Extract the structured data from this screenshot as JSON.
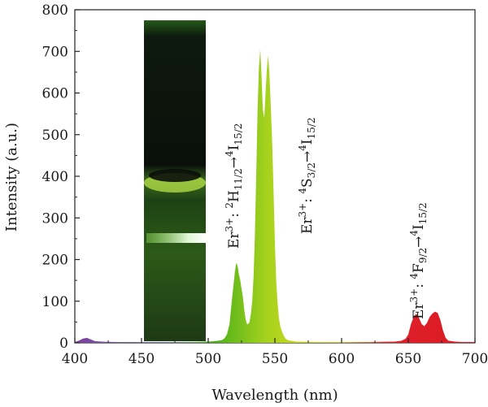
{
  "chart_data": {
    "type": "area",
    "xlabel": "Wavelength (nm)",
    "ylabel": "Intensity (a.u.)",
    "xlim": [
      400,
      700
    ],
    "ylim": [
      0,
      800
    ],
    "xticks": [
      400,
      450,
      500,
      550,
      600,
      650,
      700
    ],
    "yticks": [
      0,
      100,
      200,
      300,
      400,
      500,
      600,
      700,
      800
    ],
    "grid": false,
    "colors": {
      "violet": "#7b3f9e",
      "green": "#4caf1a",
      "yellow_green": "#b8d320",
      "red": "#e0202a"
    },
    "series": [
      {
        "x": [
          400,
          403,
          406,
          409,
          412,
          415,
          420,
          430,
          440,
          450,
          460,
          470,
          480,
          490,
          500,
          505,
          510,
          512,
          514,
          516,
          518,
          520,
          521,
          522,
          523,
          524,
          525,
          526,
          527,
          528,
          529,
          530,
          531,
          532,
          533,
          534,
          535,
          536,
          537,
          538,
          539,
          540,
          541,
          542,
          543,
          544,
          545,
          546,
          547,
          548,
          549,
          550,
          551,
          552,
          553,
          554,
          555,
          556,
          557,
          558,
          559,
          560,
          562,
          564,
          566,
          570,
          580,
          600,
          620,
          640,
          645,
          648,
          650,
          652,
          654,
          656,
          658,
          660,
          662,
          664,
          666,
          668,
          670,
          672,
          674,
          676,
          678,
          680,
          685,
          690,
          700
        ],
        "values": [
          2,
          5,
          10,
          12,
          8,
          4,
          3,
          2,
          2,
          2,
          2,
          2,
          2,
          2,
          3,
          4,
          6,
          10,
          20,
          45,
          110,
          170,
          192,
          185,
          165,
          150,
          130,
          110,
          80,
          58,
          45,
          45,
          50,
          70,
          100,
          160,
          260,
          400,
          560,
          660,
          705,
          640,
          560,
          540,
          600,
          660,
          690,
          640,
          560,
          480,
          360,
          240,
          150,
          95,
          60,
          40,
          30,
          22,
          15,
          10,
          8,
          6,
          5,
          4,
          3,
          3,
          2,
          2,
          2,
          3,
          5,
          10,
          20,
          45,
          62,
          70,
          60,
          45,
          40,
          48,
          62,
          70,
          75,
          72,
          55,
          30,
          12,
          5,
          3,
          2,
          2
        ]
      }
    ],
    "annotations": [
      {
        "ion": "Er",
        "ion_sup": "3+",
        "sep": ":",
        "upper_sup": "2",
        "upper_term": "H",
        "upper_sub": "11/2",
        "arrow": "→",
        "lower_sup": "4",
        "lower_term": "I",
        "lower_sub": "15/2"
      },
      {
        "ion": "Er",
        "ion_sup": "3+",
        "sep": ":",
        "upper_sup": "4",
        "upper_term": "S",
        "upper_sub": "3/2",
        "arrow": "→",
        "lower_sup": "4",
        "lower_term": "I",
        "lower_sub": "15/2"
      },
      {
        "ion": "Er",
        "ion_sup": "3+",
        "sep": ":",
        "upper_sup": "4",
        "upper_term": "F",
        "upper_sub": "9/2",
        "arrow": "→",
        "lower_sup": "4",
        "lower_term": "I",
        "lower_sub": "15/2"
      }
    ]
  }
}
